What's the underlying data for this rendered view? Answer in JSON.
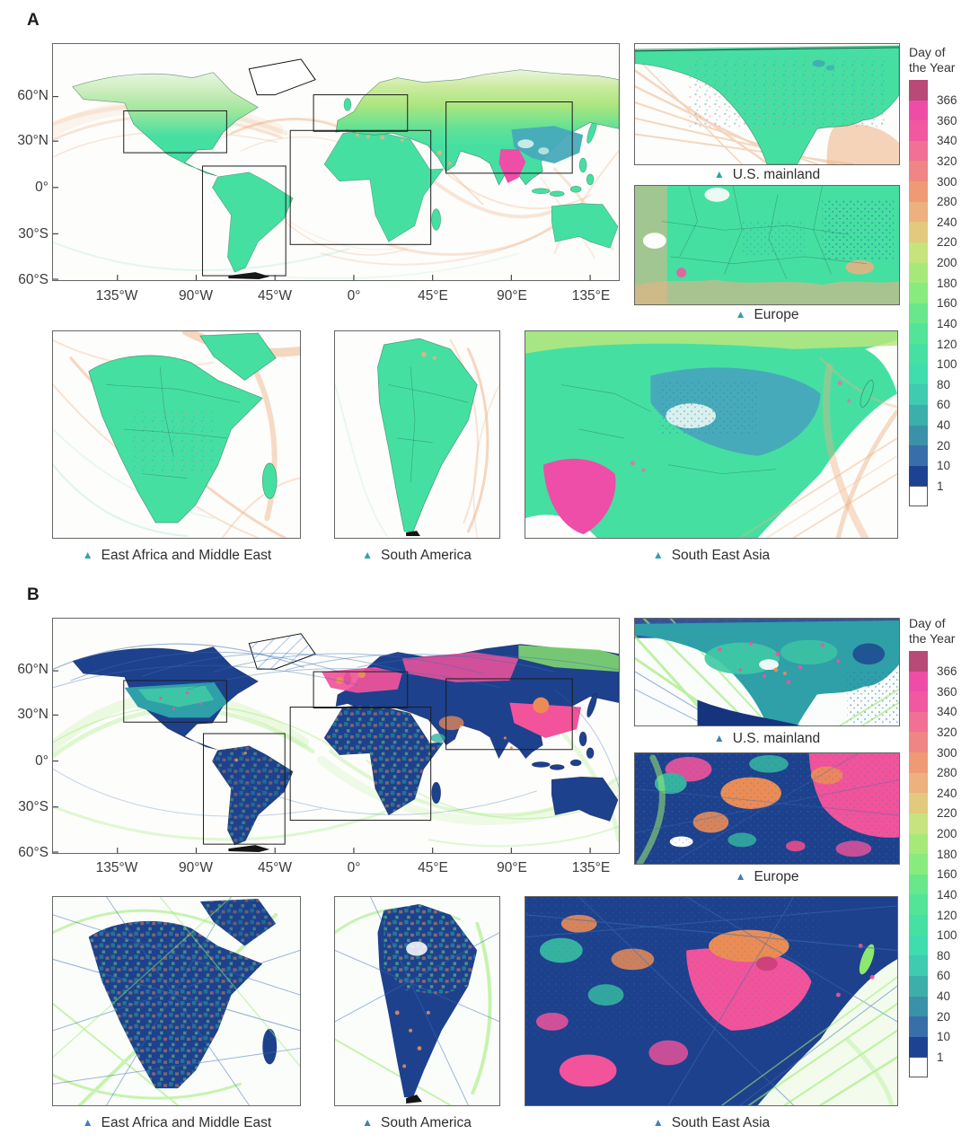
{
  "panels": {
    "a": {
      "label": "A"
    },
    "b": {
      "label": "B"
    }
  },
  "axes": {
    "x": [
      "135°W",
      "90°W",
      "45°W",
      "0°",
      "45°E",
      "90°E",
      "135°E"
    ],
    "y": [
      "60°N",
      "30°N",
      "0°",
      "30°S",
      "60°S"
    ]
  },
  "labels": {
    "us": "U.S. mainland",
    "europe": "Europe",
    "africa": "East Africa and Middle East",
    "samerica": "South America",
    "seasia": "South East Asia"
  },
  "marker": {
    "glyph": "▲"
  },
  "colorbar": {
    "title_lines": [
      "Day of",
      "the Year"
    ],
    "segments": [
      {
        "color": "#b74a77",
        "label": "366"
      },
      {
        "color": "#ee4da6",
        "label": "360"
      },
      {
        "color": "#f1589f",
        "label": "340"
      },
      {
        "color": "#f17094",
        "label": "320"
      },
      {
        "color": "#f08585",
        "label": "300"
      },
      {
        "color": "#ef9a75",
        "label": "280"
      },
      {
        "color": "#edb07f",
        "label": "240"
      },
      {
        "color": "#e2c97e",
        "label": "220"
      },
      {
        "color": "#c7e37e",
        "label": "200"
      },
      {
        "color": "#a6e97b",
        "label": "180"
      },
      {
        "color": "#87eb7d",
        "label": "160"
      },
      {
        "color": "#68e78b",
        "label": "140"
      },
      {
        "color": "#53e497",
        "label": "120"
      },
      {
        "color": "#46e1a2",
        "label": "100"
      },
      {
        "color": "#3fdcae",
        "label": "80"
      },
      {
        "color": "#3ecbb0",
        "label": "60"
      },
      {
        "color": "#3cafaa",
        "label": "40"
      },
      {
        "color": "#3b92a8",
        "label": "20"
      },
      {
        "color": "#396fa9",
        "label": "10"
      },
      {
        "color": "#1d4292",
        "label": "1"
      },
      {
        "color": "#ffffff",
        "label": ""
      }
    ]
  },
  "colors": {
    "pA": {
      "land": "#45dfa2",
      "track": "#edb083",
      "china": "#47aaba",
      "india": "#ee4da8",
      "triangle": "#2fa2ae"
    },
    "pB": {
      "land": "#1d418d",
      "trackGreen": "#9ceb71",
      "trackBlue": "#3b6fb2",
      "us": "#2f9fa8",
      "pink": "#f2539b",
      "orange": "#ec8c55",
      "teal": "#35b3a0",
      "triangle": "#3f7fba"
    }
  }
}
